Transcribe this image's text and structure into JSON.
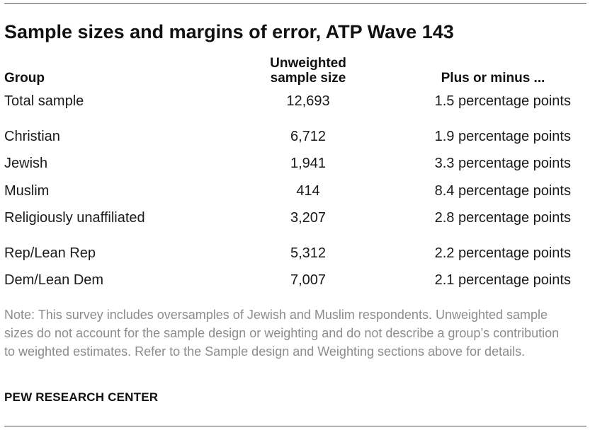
{
  "title": "Sample sizes and margins of error, ATP Wave 143",
  "headers": {
    "group": "Group",
    "sample_line1": "Unweighted",
    "sample_line2": "sample size",
    "moe": "Plus or minus ..."
  },
  "rows": [
    {
      "group": "Total sample",
      "n": "12,693",
      "moe": "1.5 percentage points"
    },
    {
      "group": "Christian",
      "n": "6,712",
      "moe": "1.9 percentage points"
    },
    {
      "group": "Jewish",
      "n": "1,941",
      "moe": "3.3 percentage points"
    },
    {
      "group": "Muslim",
      "n": "414",
      "moe": "8.4 percentage points"
    },
    {
      "group": "Religiously unaffiliated",
      "n": "3,207",
      "moe": "2.8 percentage points"
    },
    {
      "group": "Rep/Lean Rep",
      "n": "5,312",
      "moe": "2.2 percentage points"
    },
    {
      "group": "Dem/Lean Dem",
      "n": "7,007",
      "moe": "2.1 percentage points"
    }
  ],
  "note": "Note: This survey includes oversamples of Jewish and Muslim respondents. Unweighted sample sizes do not account for the sample design or weighting and do not describe a group’s contribution to weighted estimates. Refer to the Sample design and Weighting sections above for details.",
  "source": "PEW RESEARCH CENTER"
}
